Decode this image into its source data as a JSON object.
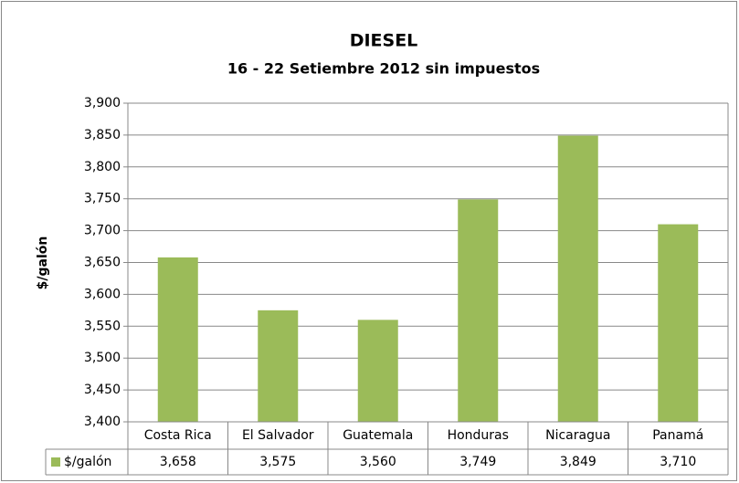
{
  "chart_data": {
    "type": "bar",
    "title": "DIESEL",
    "subtitle": "16 - 22 Setiembre 2012 sin impuestos",
    "y_label": "$/galón",
    "categories": [
      "Costa Rica",
      "El Salvador",
      "Guatemala",
      "Honduras",
      "Nicaragua",
      "Panamá"
    ],
    "series": [
      {
        "name": "$/galón",
        "color": "#9bbb59",
        "values": [
          3658,
          3575,
          3560,
          3749,
          3849,
          3710
        ],
        "value_labels": [
          "3,658",
          "3,575",
          "3,560",
          "3,749",
          "3,849",
          "3,710"
        ]
      }
    ],
    "ylim": [
      3400,
      3900
    ],
    "yticks": [
      {
        "value": 3400,
        "label": "3,400"
      },
      {
        "value": 3450,
        "label": "3,450"
      },
      {
        "value": 3500,
        "label": "3,500"
      },
      {
        "value": 3550,
        "label": "3,550"
      },
      {
        "value": 3600,
        "label": "3,600"
      },
      {
        "value": 3650,
        "label": "3,650"
      },
      {
        "value": 3700,
        "label": "3,700"
      },
      {
        "value": 3750,
        "label": "3,750"
      },
      {
        "value": 3800,
        "label": "3,800"
      },
      {
        "value": 3850,
        "label": "3,850"
      },
      {
        "value": 3900,
        "label": "3,900"
      }
    ],
    "grid": true,
    "legend": "table"
  }
}
